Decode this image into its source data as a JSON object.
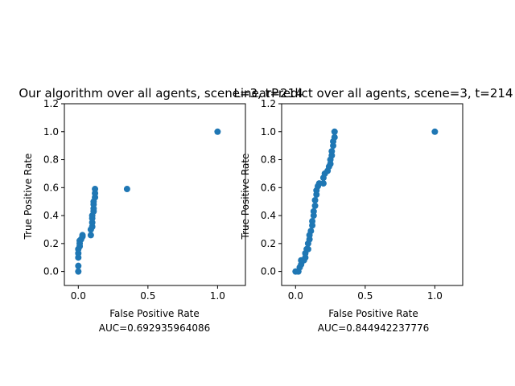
{
  "chart_data": [
    {
      "type": "scatter",
      "title": "Our algorithm over all agents, scene=3,  t=214",
      "xlabel": "False Positive Rate",
      "ylabel": "True Positive Rate",
      "note": "AUC=0.692935964086",
      "xlim": [
        -0.1,
        1.2
      ],
      "ylim": [
        -0.1,
        1.2
      ],
      "xticks": [
        "0.0",
        "0.5",
        "1.0"
      ],
      "yticks": [
        "0.0",
        "0.2",
        "0.4",
        "0.6",
        "0.8",
        "1.0",
        "1.2"
      ],
      "color": "#1f77b4",
      "points": [
        [
          0.0,
          0.0
        ],
        [
          0.0,
          0.04
        ],
        [
          0.0,
          0.1
        ],
        [
          0.0,
          0.13
        ],
        [
          0.0,
          0.16
        ],
        [
          0.01,
          0.18
        ],
        [
          0.01,
          0.2
        ],
        [
          0.01,
          0.22
        ],
        [
          0.02,
          0.23
        ],
        [
          0.03,
          0.25
        ],
        [
          0.03,
          0.26
        ],
        [
          0.09,
          0.26
        ],
        [
          0.09,
          0.3
        ],
        [
          0.1,
          0.32
        ],
        [
          0.1,
          0.35
        ],
        [
          0.1,
          0.38
        ],
        [
          0.1,
          0.4
        ],
        [
          0.11,
          0.43
        ],
        [
          0.11,
          0.45
        ],
        [
          0.11,
          0.48
        ],
        [
          0.11,
          0.5
        ],
        [
          0.12,
          0.53
        ],
        [
          0.12,
          0.56
        ],
        [
          0.12,
          0.59
        ],
        [
          0.35,
          0.59
        ],
        [
          1.0,
          1.0
        ]
      ]
    },
    {
      "type": "scatter",
      "title": "LinearPredict over all agents, scene=3,  t=214",
      "xlabel": "False Positive Rate",
      "ylabel": "True Positive Rate",
      "note": "AUC=0.844942237776",
      "xlim": [
        -0.1,
        1.2
      ],
      "ylim": [
        -0.1,
        1.2
      ],
      "xticks": [
        "0.0",
        "0.5",
        "1.0"
      ],
      "yticks": [
        "0.0",
        "0.2",
        "0.4",
        "0.6",
        "0.8",
        "1.0",
        "1.2"
      ],
      "color": "#1f77b4",
      "points": [
        [
          0.0,
          0.0
        ],
        [
          0.02,
          0.0
        ],
        [
          0.03,
          0.03
        ],
        [
          0.04,
          0.05
        ],
        [
          0.04,
          0.08
        ],
        [
          0.06,
          0.08
        ],
        [
          0.07,
          0.1
        ],
        [
          0.07,
          0.13
        ],
        [
          0.08,
          0.16
        ],
        [
          0.09,
          0.16
        ],
        [
          0.09,
          0.2
        ],
        [
          0.1,
          0.23
        ],
        [
          0.1,
          0.26
        ],
        [
          0.11,
          0.29
        ],
        [
          0.12,
          0.33
        ],
        [
          0.12,
          0.36
        ],
        [
          0.13,
          0.4
        ],
        [
          0.13,
          0.43
        ],
        [
          0.14,
          0.47
        ],
        [
          0.14,
          0.51
        ],
        [
          0.15,
          0.55
        ],
        [
          0.15,
          0.58
        ],
        [
          0.16,
          0.61
        ],
        [
          0.17,
          0.63
        ],
        [
          0.2,
          0.63
        ],
        [
          0.2,
          0.67
        ],
        [
          0.21,
          0.7
        ],
        [
          0.23,
          0.72
        ],
        [
          0.24,
          0.75
        ],
        [
          0.25,
          0.77
        ],
        [
          0.25,
          0.8
        ],
        [
          0.26,
          0.83
        ],
        [
          0.26,
          0.86
        ],
        [
          0.27,
          0.9
        ],
        [
          0.27,
          0.93
        ],
        [
          0.28,
          0.96
        ],
        [
          0.28,
          1.0
        ],
        [
          1.0,
          1.0
        ]
      ]
    }
  ]
}
